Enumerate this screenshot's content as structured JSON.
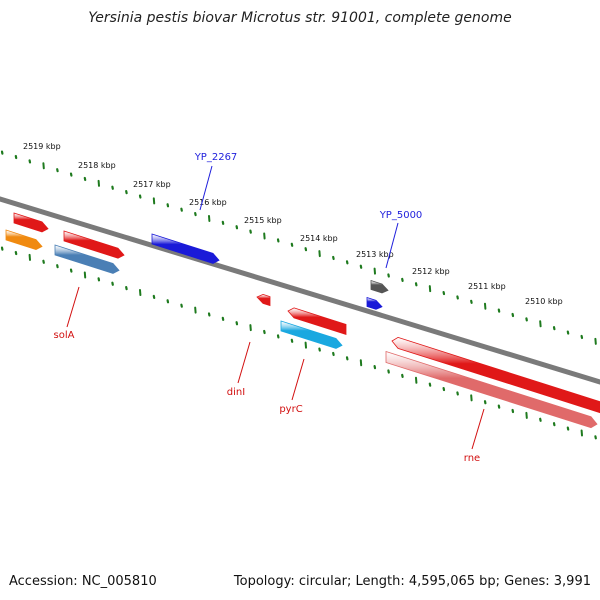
{
  "title": "Yersinia pestis biovar Microtus str. 91001, complete genome",
  "accession_label": "Accession: NC_005810",
  "stats_label": "Topology: circular; Length: 4,595,065 bp; Genes: 3,991",
  "scale_ticks": [
    "2519 kbp",
    "2518 kbp",
    "2517 kbp",
    "2516 kbp",
    "2515 kbp",
    "2514 kbp",
    "2513 kbp",
    "2512 kbp",
    "2511 kbp",
    "2510 kbp"
  ],
  "features": [
    {
      "name": "YP_2267",
      "color": "#1f1fdc"
    },
    {
      "name": "YP_5000",
      "color": "#1f1fdc"
    },
    {
      "name": "solA",
      "color": "#d21010"
    },
    {
      "name": "dinI",
      "color": "#d21010"
    },
    {
      "name": "pyrC",
      "color": "#d21010"
    },
    {
      "name": "rne",
      "color": "#d21010"
    }
  ],
  "colors": {
    "backbone": "#7a7a7a",
    "ticks": "#1e7a1e",
    "gene_red": "#e01818",
    "gene_blue": "#1a1ad8",
    "gene_orange": "#f08a10",
    "gene_steel": "#4a7fb5",
    "gene_cyan": "#1aa8e0",
    "gene_pink": "#e06a6a",
    "gene_gray": "#555555",
    "label_red": "#c01010",
    "label_blue": "#1010a0"
  }
}
